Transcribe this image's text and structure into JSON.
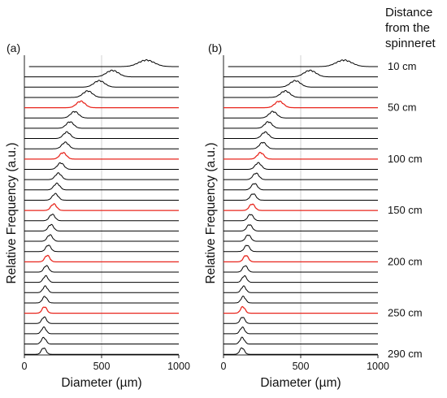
{
  "figure": {
    "header_lines": [
      "Distance",
      "from the",
      "spinneret"
    ]
  },
  "chart_data": [
    {
      "type": "line",
      "panel_label": "(a)",
      "xlabel": "Diameter (µm)",
      "ylabel": "Relative Frequency (a.u.)",
      "xlim": [
        0,
        1000
      ],
      "xticks": [
        "0",
        "500",
        "1000"
      ],
      "grid": "vertical line at 500",
      "series_distances_cm": [
        10,
        20,
        30,
        40,
        50,
        60,
        70,
        80,
        90,
        100,
        110,
        120,
        130,
        140,
        150,
        160,
        170,
        180,
        190,
        200,
        210,
        220,
        230,
        240,
        250,
        260,
        270,
        280,
        290
      ],
      "peak_diameters_um": [
        790,
        570,
        485,
        410,
        365,
        325,
        295,
        275,
        265,
        250,
        235,
        220,
        210,
        200,
        190,
        180,
        172,
        165,
        155,
        148,
        142,
        138,
        135,
        132,
        130,
        128,
        126,
        125,
        125
      ],
      "highlighted_distances_cm": [
        50,
        100,
        150,
        200,
        250
      ],
      "highlight_color": "#e8251c",
      "base_color": "#000000"
    },
    {
      "type": "line",
      "panel_label": "(b)",
      "xlabel": "Diameter (µm)",
      "ylabel": "Relative Frequency (a.u.)",
      "xlim": [
        0,
        1000
      ],
      "xticks": [
        "0",
        "500",
        "1000"
      ],
      "grid": "vertical line at 500",
      "series_distances_cm": [
        10,
        20,
        30,
        40,
        50,
        60,
        70,
        80,
        90,
        100,
        110,
        120,
        130,
        140,
        150,
        160,
        170,
        180,
        190,
        200,
        210,
        220,
        230,
        240,
        250,
        260,
        270,
        280,
        290
      ],
      "peak_diameters_um": [
        780,
        560,
        465,
        400,
        360,
        320,
        290,
        270,
        255,
        240,
        225,
        210,
        200,
        192,
        185,
        175,
        168,
        160,
        152,
        145,
        140,
        135,
        130,
        128,
        125,
        123,
        122,
        121,
        120
      ],
      "highlighted_distances_cm": [
        50,
        100,
        150,
        200,
        250
      ],
      "highlight_color": "#e8251c",
      "base_color": "#000000"
    }
  ],
  "distance_labels": [
    "10 cm",
    "50 cm",
    "100 cm",
    "150 cm",
    "200 cm",
    "250 cm",
    "290 cm"
  ]
}
